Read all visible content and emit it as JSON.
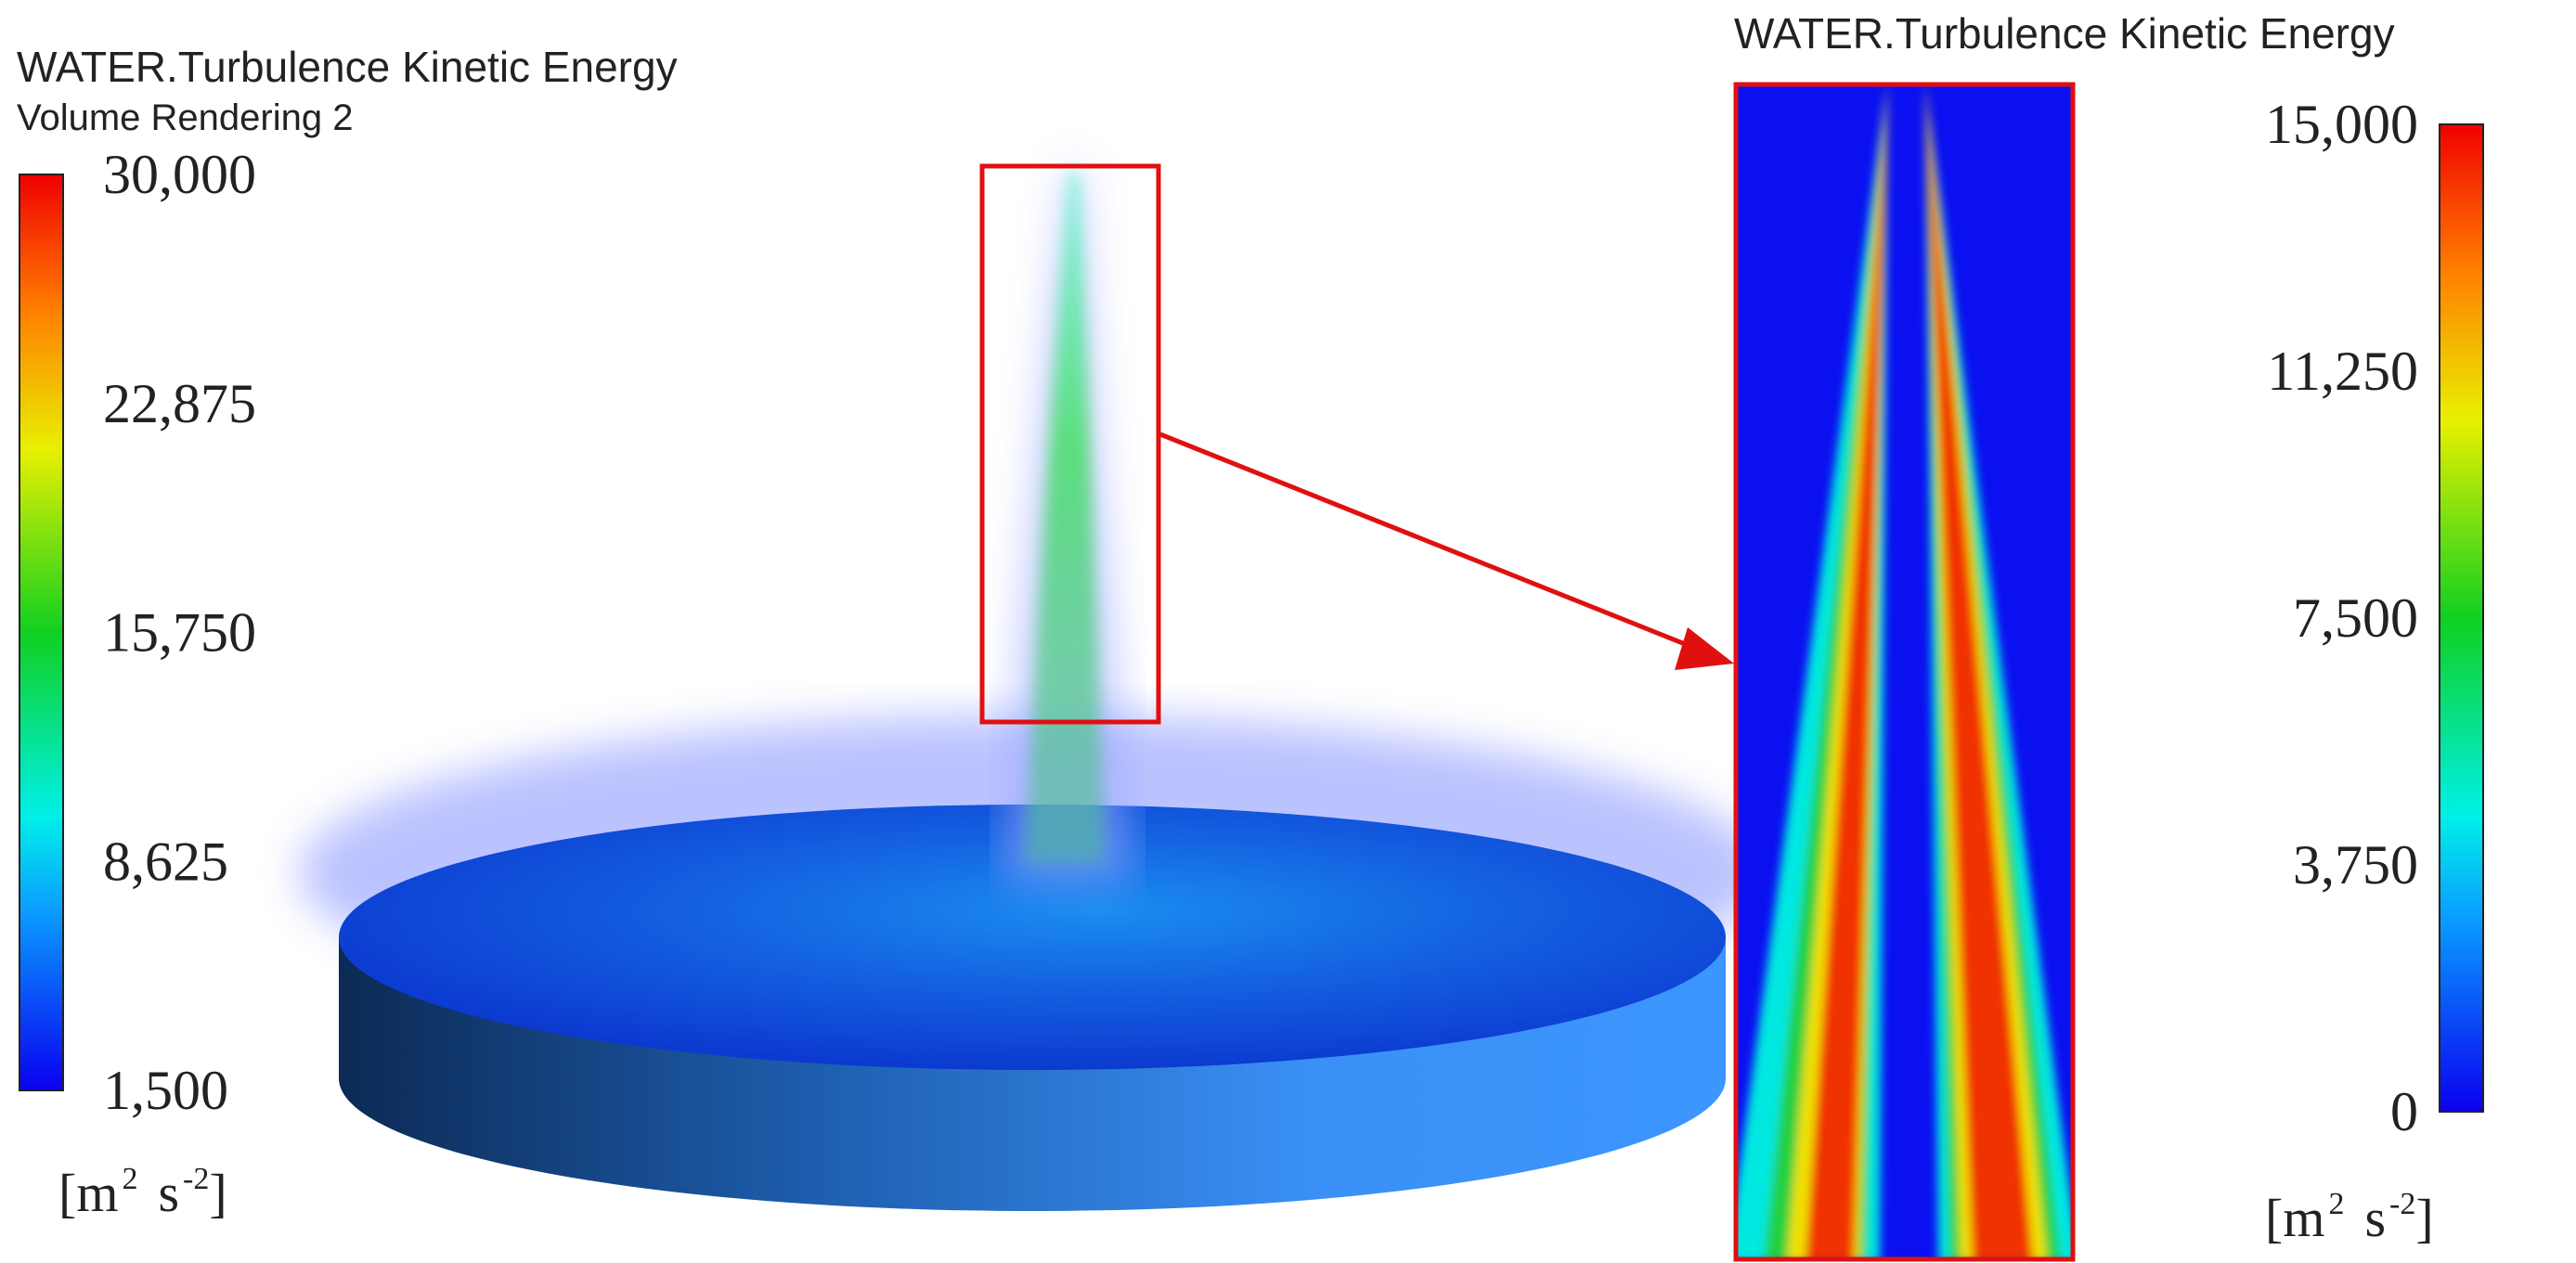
{
  "left_panel": {
    "title": "WATER.Turbulence Kinetic Energy",
    "subtitle": "Volume Rendering 2",
    "colorbar": {
      "range": [
        1500,
        30000
      ],
      "ticks": [
        {
          "value": 30000,
          "label": "30,000"
        },
        {
          "value": 22875,
          "label": "22,875"
        },
        {
          "value": 15750,
          "label": "15,750"
        },
        {
          "value": 8625,
          "label": "8,625"
        },
        {
          "value": 1500,
          "label": "1,500"
        }
      ],
      "unit": [
        "[m",
        "2",
        "s",
        "-2",
        "]"
      ]
    }
  },
  "right_panel": {
    "title": "WATER.Turbulence Kinetic Energy",
    "colorbar": {
      "range": [
        0,
        15000
      ],
      "ticks": [
        {
          "value": 15000,
          "label": "15,000"
        },
        {
          "value": 11250,
          "label": "11,250"
        },
        {
          "value": 7500,
          "label": "7,500"
        },
        {
          "value": 3750,
          "label": "3,750"
        },
        {
          "value": 0,
          "label": "0"
        }
      ],
      "unit": [
        "[m",
        "2",
        "s",
        "-2",
        "]"
      ]
    }
  }
}
